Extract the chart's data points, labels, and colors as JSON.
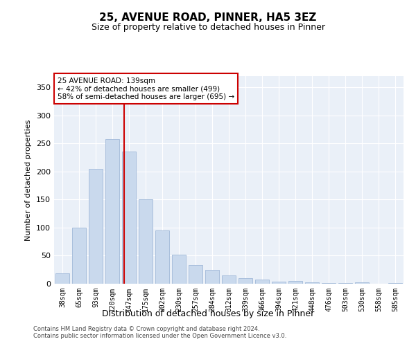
{
  "title": "25, AVENUE ROAD, PINNER, HA5 3EZ",
  "subtitle": "Size of property relative to detached houses in Pinner",
  "xlabel": "Distribution of detached houses by size in Pinner",
  "ylabel": "Number of detached properties",
  "bar_labels": [
    "38sqm",
    "65sqm",
    "93sqm",
    "120sqm",
    "147sqm",
    "175sqm",
    "202sqm",
    "230sqm",
    "257sqm",
    "284sqm",
    "312sqm",
    "339sqm",
    "366sqm",
    "394sqm",
    "421sqm",
    "448sqm",
    "476sqm",
    "503sqm",
    "530sqm",
    "558sqm",
    "585sqm"
  ],
  "bar_values": [
    18,
    100,
    205,
    258,
    235,
    150,
    95,
    52,
    33,
    25,
    15,
    10,
    7,
    4,
    5,
    2,
    1,
    1,
    2,
    0,
    1
  ],
  "bar_color": "#c9d9ed",
  "bar_edgecolor": "#a0b8d8",
  "vline_x": 3.72,
  "vline_color": "#cc0000",
  "annotation_text": "25 AVENUE ROAD: 139sqm\n← 42% of detached houses are smaller (499)\n58% of semi-detached houses are larger (695) →",
  "box_edgecolor": "#cc0000",
  "ylim": [
    0,
    370
  ],
  "yticks": [
    0,
    50,
    100,
    150,
    200,
    250,
    300,
    350
  ],
  "bg_color": "#eaf0f8",
  "footer_line1": "Contains HM Land Registry data © Crown copyright and database right 2024.",
  "footer_line2": "Contains public sector information licensed under the Open Government Licence v3.0."
}
